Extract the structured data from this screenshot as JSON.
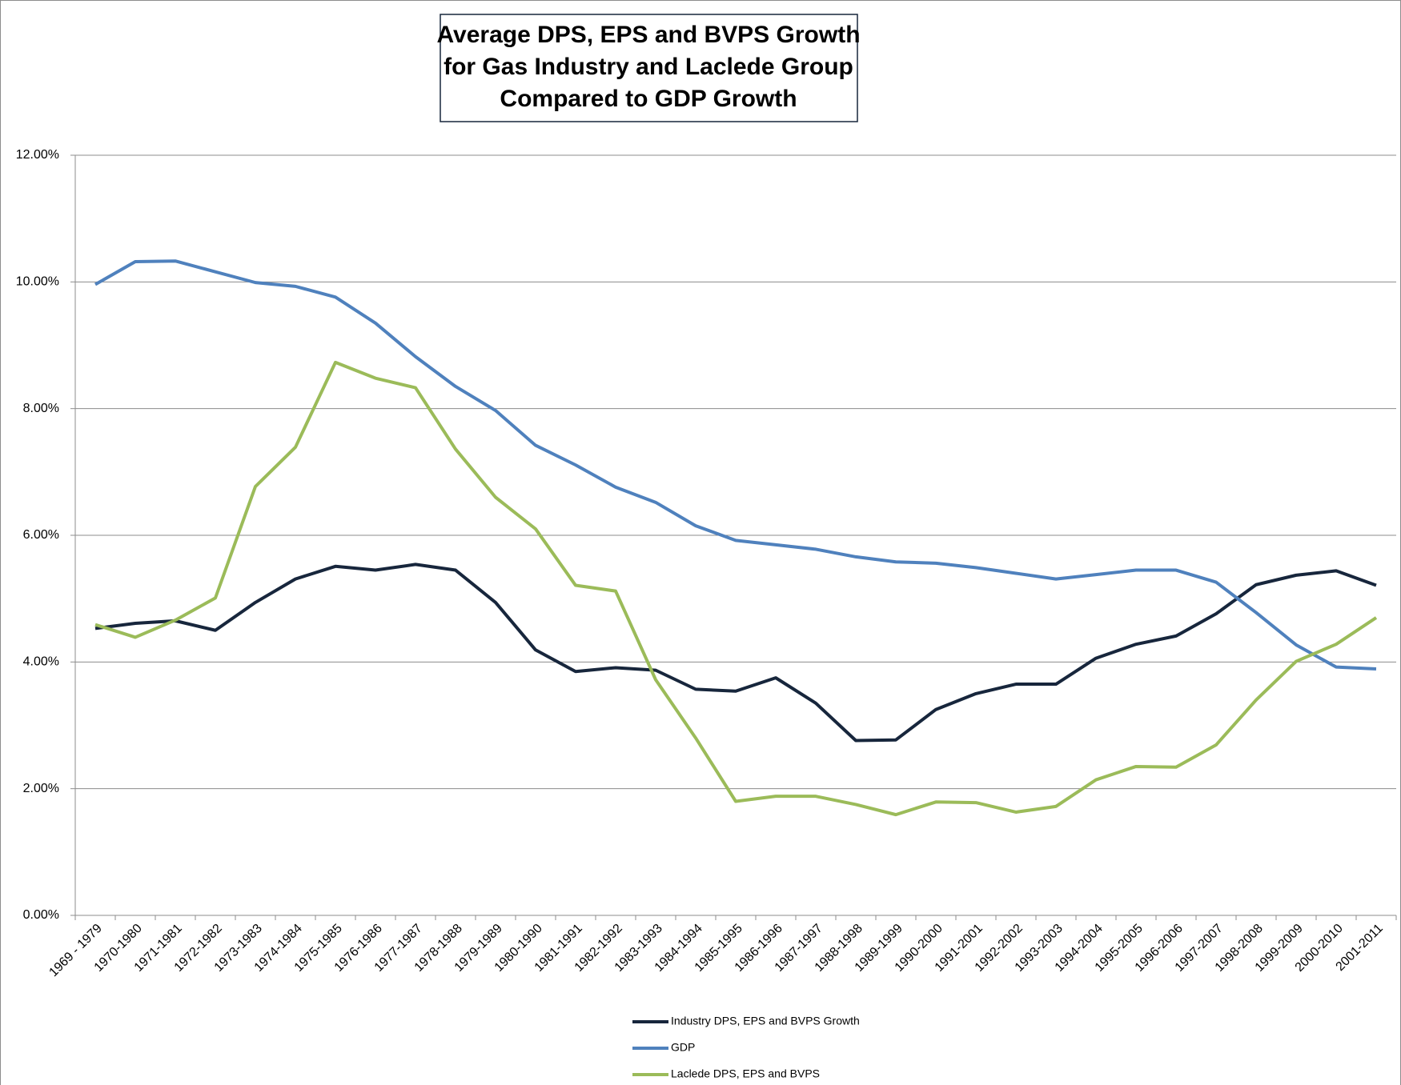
{
  "chart_data": {
    "type": "line",
    "title": [
      "Average DPS, EPS and BVPS Growth",
      "for Gas Industry and Laclede Group",
      "Compared to GDP Growth"
    ],
    "categories": [
      "1969 - 1979",
      "1970-1980",
      "1971-1981",
      "1972-1982",
      "1973-1983",
      "1974-1984",
      "1975-1985",
      "1976-1986",
      "1977-1987",
      "1978-1988",
      "1979-1989",
      "1980-1990",
      "1981-1991",
      "1982-1992",
      "1983-1993",
      "1984-1994",
      "1985-1995",
      "1986-1996",
      "1987-1997",
      "1988-1998",
      "1989-1999",
      "1990-2000",
      "1991-2001",
      "1992-2002",
      "1993-2003",
      "1994-2004",
      "1995-2005",
      "1996-2006",
      "1997-2007",
      "1998-2008",
      "1999-2009",
      "2000-2010",
      "2001-2011"
    ],
    "series": [
      {
        "name": "Industry DPS, EPS and BVPS Growth",
        "color": "#17263c",
        "values": [
          4.53,
          4.61,
          4.65,
          4.5,
          4.94,
          5.31,
          5.51,
          5.45,
          5.54,
          5.45,
          4.94,
          4.19,
          3.85,
          3.91,
          3.87,
          3.57,
          3.54,
          3.75,
          3.35,
          2.76,
          2.77,
          3.25,
          3.5,
          3.65,
          3.65,
          4.06,
          4.28,
          4.41,
          4.76,
          5.22,
          5.37,
          5.44,
          5.21
        ]
      },
      {
        "name": "GDP",
        "color": "#4f81bd",
        "values": [
          9.96,
          10.32,
          10.33,
          10.16,
          9.99,
          9.93,
          9.76,
          9.35,
          8.82,
          8.35,
          7.97,
          7.42,
          7.11,
          6.76,
          6.52,
          6.15,
          5.92,
          5.85,
          5.78,
          5.66,
          5.58,
          5.56,
          5.49,
          5.4,
          5.31,
          5.38,
          5.45,
          5.45,
          5.26,
          4.78,
          4.27,
          3.92,
          3.89
        ]
      },
      {
        "name": "Laclede DPS, EPS and BVPS",
        "color": "#9bbb59",
        "values": [
          4.59,
          4.39,
          4.66,
          5.01,
          6.77,
          7.39,
          8.73,
          8.48,
          8.33,
          7.36,
          6.6,
          6.1,
          5.21,
          5.12,
          3.72,
          2.8,
          1.8,
          1.88,
          1.88,
          1.75,
          1.59,
          1.79,
          1.78,
          1.63,
          1.72,
          2.14,
          2.35,
          2.34,
          2.69,
          3.4,
          4.01,
          4.28,
          4.7
        ]
      }
    ],
    "ylim": [
      0,
      12
    ],
    "yticks": [
      {
        "value": 0,
        "label": "0.00%"
      },
      {
        "value": 2,
        "label": "2.00%"
      },
      {
        "value": 4,
        "label": "4.00%"
      },
      {
        "value": 6,
        "label": "6.00%"
      },
      {
        "value": 8,
        "label": "8.00%"
      },
      {
        "value": 10,
        "label": "10.00%"
      },
      {
        "value": 12,
        "label": "12.00%"
      }
    ],
    "grid": true,
    "legend": "bottom"
  }
}
